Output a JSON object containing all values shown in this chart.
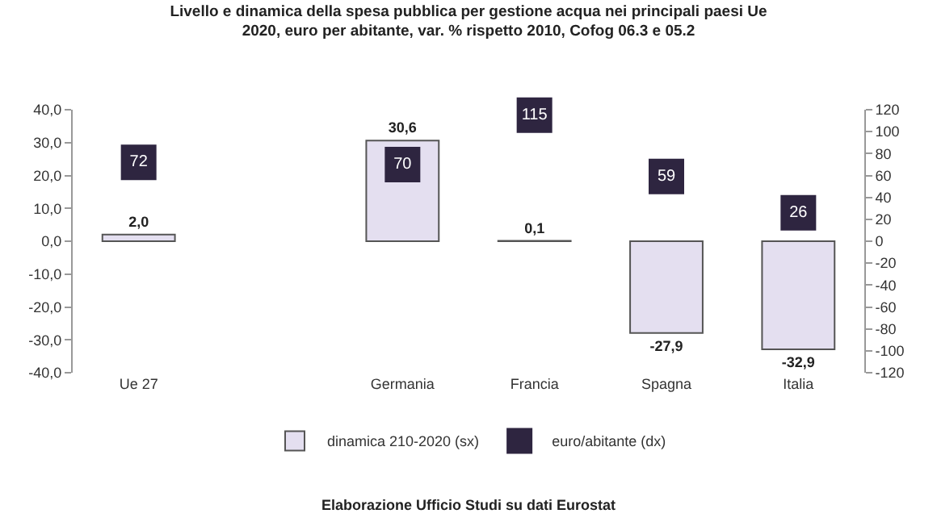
{
  "chart_data": {
    "type": "bar",
    "title": "Livello e dinamica della spesa pubblica per gestione acqua nei principali paesi Ue",
    "subtitle": "2020, euro per abitante, var. % rispetto 2010, Cofog 06.3 e 05.2",
    "categories": [
      "Ue 27",
      null,
      "Germania",
      "Francia",
      "Spagna",
      "Italia"
    ],
    "series": [
      {
        "name": "dinamica 210-2020 (sx)",
        "color": "#e4dff0",
        "values": [
          2.0,
          null,
          30.6,
          0.1,
          -27.9,
          -32.9
        ],
        "value_labels": [
          "2,0",
          null,
          "30,6",
          "0,1",
          "-27,9",
          "-32,9"
        ]
      },
      {
        "name": "euro/abitante (dx)",
        "type": "scatter",
        "axis": "y2",
        "marker": "square",
        "color": "#2e2540",
        "values": [
          72,
          null,
          70,
          115,
          59,
          26
        ],
        "value_labels": [
          "72",
          null,
          "70",
          "115",
          "59",
          "26"
        ]
      }
    ],
    "ylim": [
      -40,
      40
    ],
    "yticks": [
      {
        "value": -40,
        "label": "-40,0"
      },
      {
        "value": -30,
        "label": "-30,0"
      },
      {
        "value": -20,
        "label": "-20,0"
      },
      {
        "value": -10,
        "label": "-10,0"
      },
      {
        "value": 0,
        "label": "0,0"
      },
      {
        "value": 10,
        "label": "10,0"
      },
      {
        "value": 20,
        "label": "20,0"
      },
      {
        "value": 30,
        "label": "30,0"
      },
      {
        "value": 40,
        "label": "40,0"
      }
    ],
    "y2lim": [
      -120,
      120
    ],
    "y2ticks": [
      -120,
      -100,
      -80,
      -60,
      -40,
      -20,
      0,
      20,
      40,
      60,
      80,
      100,
      120
    ],
    "legend": "bottom",
    "annotations": [
      "Elaborazione Ufficio Studi su dati Eurostat"
    ]
  }
}
